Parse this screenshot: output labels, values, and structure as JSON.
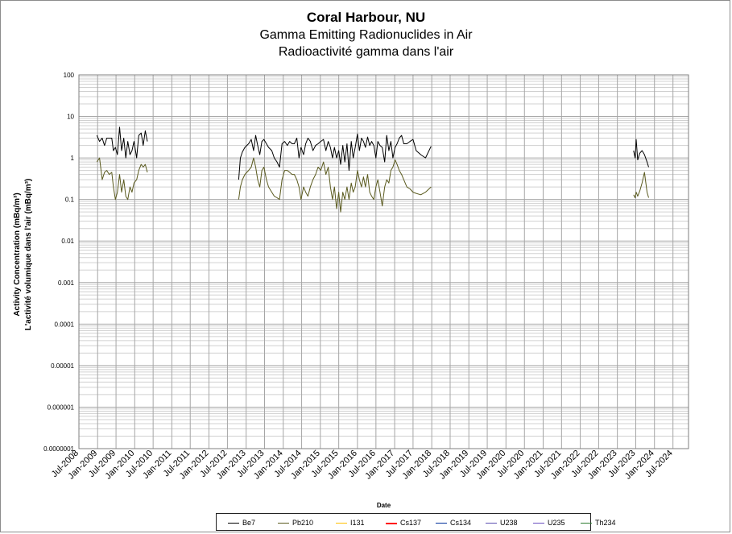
{
  "title": "Coral Harbour, NU",
  "subtitle_en": "Gamma Emitting Radionuclides in Air",
  "subtitle_fr": "Radioactivité gamma dans l'air",
  "chart_data": {
    "type": "line",
    "title": "Coral Harbour, NU",
    "subtitle": [
      "Gamma Emitting Radionuclides in Air",
      "Radioactivité gamma dans l'air"
    ],
    "xlabel": "Date",
    "ylabel": [
      "Activity Concentration  (mBq/m³)",
      "L'activité volumique dans l'air (mBq/m³)"
    ],
    "yscale": "log",
    "ylim": [
      1e-07,
      100
    ],
    "xlim": [
      "2008-07-01",
      "2024-12-01"
    ],
    "grid": true,
    "legend_position": "bottom",
    "y_tick_labels": [
      "100",
      "10",
      "1",
      "0.1",
      "0.01",
      "0.001",
      "0.0001",
      "0.00001",
      "0.000001",
      "0.0000001"
    ],
    "x_tick_labels": [
      "Jul-2008",
      "Jan-2009",
      "Jul-2009",
      "Jan-2010",
      "Jul-2010",
      "Jan-2011",
      "Jul-2011",
      "Jan-2012",
      "Jul-2012",
      "Jan-2013",
      "Jul-2013",
      "Jan-2014",
      "Jul-2014",
      "Jan-2015",
      "Jul-2015",
      "Jan-2016",
      "Jul-2016",
      "Jan-2017",
      "Jul-2017",
      "Jan-2018",
      "Jul-2018",
      "Jan-2019",
      "Jul-2019",
      "Jan-2020",
      "Jul-2020",
      "Jan-2021",
      "Jul-2021",
      "Jan-2022",
      "Jul-2022",
      "Jan-2023",
      "Jul-2023",
      "Jan-2024",
      "Jul-2024"
    ],
    "legend": [
      {
        "name": "Be7",
        "color": "#000000"
      },
      {
        "name": "Pb210",
        "color": "#5a5a1e"
      },
      {
        "name": "I131",
        "color": "#ffc000"
      },
      {
        "name": "Cs137",
        "color": "#ff0000"
      },
      {
        "name": "Cs134",
        "color": "#002f9a"
      },
      {
        "name": "U238",
        "color": "#5b4fb0"
      },
      {
        "name": "U235",
        "color": "#6a4fc0"
      },
      {
        "name": "Th234",
        "color": "#2e7d32"
      }
    ],
    "series": [
      {
        "name": "Be7",
        "color": "#000000",
        "segments": [
          {
            "x": [
              "2008-12-25",
              "2009-01-20",
              "2009-02-15",
              "2009-03-10",
              "2009-04-01",
              "2009-04-25",
              "2009-05-20",
              "2009-06-05",
              "2009-06-25",
              "2009-07-15",
              "2009-08-05",
              "2009-08-25",
              "2009-09-15",
              "2009-10-05",
              "2009-10-25",
              "2009-11-15",
              "2009-12-05",
              "2009-12-25",
              "2010-01-20",
              "2010-02-10",
              "2010-03-05",
              "2010-03-25",
              "2010-04-15",
              "2010-05-05"
            ],
            "y": [
              3.5,
              2.5,
              3.0,
              2.0,
              3.0,
              3.0,
              3.0,
              1.5,
              1.8,
              1.2,
              5.5,
              1.5,
              3.0,
              1.0,
              2.5,
              1.2,
              1.5,
              2.5,
              1.0,
              3.5,
              4.0,
              2.0,
              4.5,
              2.5
            ]
          },
          {
            "x": [
              "2012-10-20",
              "2012-11-05",
              "2012-11-25",
              "2012-12-20",
              "2013-01-25",
              "2013-02-20",
              "2013-03-15",
              "2013-04-05",
              "2013-04-25",
              "2013-05-15",
              "2013-06-05",
              "2013-06-25",
              "2013-07-20",
              "2013-08-10",
              "2013-09-10",
              "2013-10-05",
              "2013-11-01",
              "2013-11-25",
              "2013-12-20",
              "2014-01-15",
              "2014-02-10",
              "2014-03-05",
              "2014-03-30",
              "2014-04-20",
              "2014-05-15",
              "2014-06-05",
              "2014-06-25",
              "2014-07-20",
              "2014-08-10",
              "2014-09-01",
              "2014-09-25",
              "2014-10-20",
              "2014-11-15",
              "2014-12-10",
              "2015-01-05",
              "2015-02-01",
              "2015-02-25",
              "2015-03-20",
              "2015-04-10",
              "2015-05-01",
              "2015-05-20",
              "2015-06-10",
              "2015-07-01",
              "2015-07-20",
              "2015-08-10",
              "2015-08-30",
              "2015-09-20",
              "2015-10-10",
              "2015-11-01",
              "2015-11-20",
              "2015-12-10",
              "2016-01-01",
              "2016-01-20",
              "2016-02-10",
              "2016-03-01",
              "2016-03-20",
              "2016-04-10",
              "2016-05-01",
              "2016-05-20",
              "2016-06-10",
              "2016-07-01",
              "2016-07-20",
              "2016-08-10",
              "2016-09-01",
              "2016-09-25",
              "2016-10-15",
              "2016-11-05",
              "2016-11-25",
              "2016-12-15",
              "2017-01-05",
              "2017-01-25",
              "2017-02-15",
              "2017-03-10",
              "2017-04-01",
              "2017-05-01",
              "2017-06-01",
              "2017-07-01",
              "2017-08-01",
              "2017-09-15",
              "2017-11-01",
              "2017-12-25"
            ],
            "y": [
              0.3,
              1.0,
              1.4,
              1.8,
              2.2,
              2.8,
              1.5,
              3.5,
              2.0,
              1.2,
              2.5,
              2.8,
              2.2,
              1.8,
              1.5,
              1.0,
              0.8,
              0.6,
              2.2,
              2.5,
              2.0,
              2.5,
              2.2,
              2.2,
              3.0,
              1.0,
              1.8,
              1.2,
              2.2,
              3.0,
              2.5,
              1.5,
              2.0,
              2.2,
              2.5,
              2.8,
              1.5,
              2.5,
              1.8,
              1.0,
              1.8,
              1.0,
              1.5,
              0.7,
              2.0,
              0.8,
              2.2,
              0.5,
              2.5,
              1.0,
              1.8,
              3.8,
              1.5,
              3.0,
              2.5,
              1.8,
              3.2,
              2.0,
              2.5,
              2.0,
              1.0,
              2.5,
              2.0,
              1.8,
              0.8,
              3.5,
              1.5,
              2.5,
              1.0,
              1.8,
              2.2,
              3.0,
              3.5,
              2.2,
              2.2,
              2.5,
              2.8,
              1.5,
              1.2,
              1.0,
              1.9
            ]
          },
          {
            "x": [
              "2023-06-10",
              "2023-06-25",
              "2023-07-05",
              "2023-07-20",
              "2023-08-10",
              "2023-09-01",
              "2023-09-25",
              "2023-10-20",
              "2023-11-05"
            ],
            "y": [
              1.5,
              1.0,
              2.8,
              0.9,
              1.3,
              1.5,
              1.2,
              0.8,
              0.6
            ]
          }
        ]
      },
      {
        "name": "Pb210",
        "color": "#5a5a1e",
        "segments": [
          {
            "x": [
              "2008-12-25",
              "2009-01-20",
              "2009-02-15",
              "2009-03-10",
              "2009-04-01",
              "2009-04-25",
              "2009-05-20",
              "2009-06-05",
              "2009-06-25",
              "2009-07-15",
              "2009-08-05",
              "2009-08-25",
              "2009-09-15",
              "2009-10-05",
              "2009-10-25",
              "2009-11-15",
              "2009-12-05",
              "2009-12-25",
              "2010-01-20",
              "2010-02-10",
              "2010-03-05",
              "2010-03-25",
              "2010-04-15",
              "2010-05-05"
            ],
            "y": [
              0.8,
              1.0,
              0.3,
              0.45,
              0.5,
              0.4,
              0.45,
              0.2,
              0.1,
              0.15,
              0.4,
              0.15,
              0.3,
              0.12,
              0.1,
              0.2,
              0.15,
              0.25,
              0.3,
              0.5,
              0.7,
              0.6,
              0.7,
              0.45
            ]
          },
          {
            "x": [
              "2012-10-20",
              "2012-11-05",
              "2012-11-25",
              "2012-12-20",
              "2013-01-25",
              "2013-02-20",
              "2013-03-15",
              "2013-04-05",
              "2013-04-25",
              "2013-05-15",
              "2013-06-05",
              "2013-06-25",
              "2013-07-20",
              "2013-08-10",
              "2013-09-10",
              "2013-10-05",
              "2013-11-01",
              "2013-11-25",
              "2013-12-20",
              "2014-01-15",
              "2014-02-10",
              "2014-03-05",
              "2014-03-30",
              "2014-04-20",
              "2014-05-15",
              "2014-06-05",
              "2014-06-25",
              "2014-07-20",
              "2014-08-10",
              "2014-09-01",
              "2014-09-25",
              "2014-10-20",
              "2014-11-15",
              "2014-12-10",
              "2015-01-05",
              "2015-02-01",
              "2015-02-25",
              "2015-03-20",
              "2015-04-10",
              "2015-05-01",
              "2015-05-20",
              "2015-06-10",
              "2015-07-01",
              "2015-07-20",
              "2015-08-10",
              "2015-08-30",
              "2015-09-20",
              "2015-10-10",
              "2015-11-01",
              "2015-11-20",
              "2015-12-10",
              "2016-01-01",
              "2016-01-20",
              "2016-02-10",
              "2016-03-01",
              "2016-03-20",
              "2016-04-10",
              "2016-05-01",
              "2016-05-20",
              "2016-06-10",
              "2016-07-01",
              "2016-07-20",
              "2016-08-10",
              "2016-09-01",
              "2016-09-25",
              "2016-10-15",
              "2016-11-05",
              "2016-11-25",
              "2016-12-15",
              "2017-01-05",
              "2017-01-25",
              "2017-02-15",
              "2017-03-10",
              "2017-04-01",
              "2017-05-01",
              "2017-06-01",
              "2017-07-01",
              "2017-08-01",
              "2017-09-15",
              "2017-11-01",
              "2017-12-25"
            ],
            "y": [
              0.1,
              0.2,
              0.3,
              0.4,
              0.5,
              0.6,
              1.0,
              0.6,
              0.3,
              0.2,
              0.5,
              0.6,
              0.3,
              0.2,
              0.15,
              0.12,
              0.11,
              0.1,
              0.3,
              0.5,
              0.5,
              0.45,
              0.4,
              0.4,
              0.3,
              0.2,
              0.1,
              0.2,
              0.15,
              0.12,
              0.2,
              0.3,
              0.4,
              0.6,
              0.5,
              0.8,
              0.4,
              0.6,
              0.2,
              0.1,
              0.2,
              0.06,
              0.15,
              0.05,
              0.15,
              0.1,
              0.2,
              0.1,
              0.25,
              0.15,
              0.2,
              0.5,
              0.3,
              0.2,
              0.35,
              0.2,
              0.4,
              0.15,
              0.12,
              0.1,
              0.2,
              0.3,
              0.15,
              0.07,
              0.2,
              0.3,
              0.25,
              0.5,
              0.6,
              0.9,
              0.7,
              0.5,
              0.4,
              0.3,
              0.2,
              0.18,
              0.15,
              0.14,
              0.13,
              0.15,
              0.2
            ]
          },
          {
            "x": [
              "2023-06-10",
              "2023-06-25",
              "2023-07-05",
              "2023-07-20",
              "2023-08-10",
              "2023-09-01",
              "2023-09-25",
              "2023-10-20",
              "2023-11-05"
            ],
            "y": [
              0.13,
              0.11,
              0.15,
              0.12,
              0.16,
              0.25,
              0.45,
              0.15,
              0.11
            ]
          }
        ]
      },
      {
        "name": "I131",
        "color": "#ffc000",
        "segments": []
      },
      {
        "name": "Cs137",
        "color": "#ff0000",
        "segments": []
      },
      {
        "name": "Cs134",
        "color": "#002f9a",
        "segments": []
      },
      {
        "name": "U238",
        "color": "#5b4fb0",
        "segments": []
      },
      {
        "name": "U235",
        "color": "#6a4fc0",
        "segments": []
      },
      {
        "name": "Th234",
        "color": "#2e7d32",
        "segments": []
      }
    ]
  }
}
